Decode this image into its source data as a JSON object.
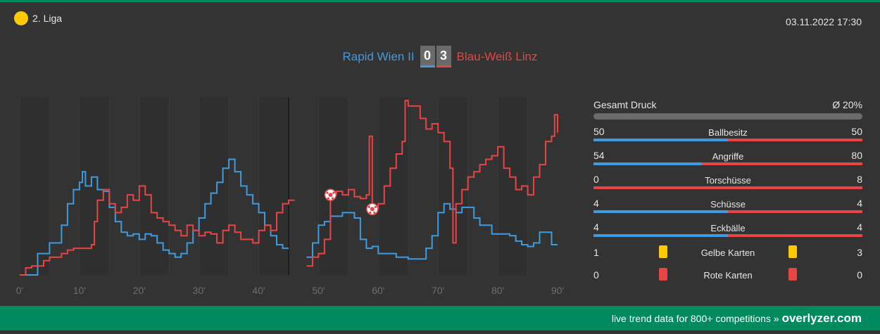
{
  "header": {
    "league": "2. Liga",
    "datetime": "03.11.2022 17:30"
  },
  "match": {
    "home_team": "Rapid Wien II",
    "away_team": "Blau-Weiß Linz",
    "home_score": "0",
    "away_score": "3"
  },
  "colors": {
    "home": "#3f9bdf",
    "away": "#e94444",
    "accent": "#008a5e",
    "yellow_card": "#ffc900",
    "red_card": "#e94444"
  },
  "stats": {
    "pressure_label": "Gesamt Druck",
    "pressure_value": "Ø 20%",
    "rows": [
      {
        "name": "Ballbesitz",
        "home": "50",
        "away": "50"
      },
      {
        "name": "Angriffe",
        "home": "54",
        "away": "80"
      },
      {
        "name": "Torschüsse",
        "home": "0",
        "away": "8"
      },
      {
        "name": "Schüsse",
        "home": "4",
        "away": "4"
      },
      {
        "name": "Eckbälle",
        "home": "4",
        "away": "4"
      }
    ],
    "cards": [
      {
        "name": "Gelbe Karten",
        "home": "1",
        "away": "3",
        "color": "#ffc900"
      },
      {
        "name": "Rote Karten",
        "home": "0",
        "away": "0",
        "color": "#e94444"
      }
    ]
  },
  "footer": {
    "text": "live trend data for 800+ competitions »",
    "brand": "overlyzer.com"
  },
  "chart_data": {
    "type": "line",
    "x_tick_labels": [
      "0'",
      "10'",
      "20'",
      "30'",
      "40'",
      "50'",
      "60'",
      "70'",
      "80'",
      "90'"
    ],
    "xlim": [
      0,
      90
    ],
    "ylim": [
      0,
      100
    ],
    "goal_icon": "soccer-ball-icon",
    "goals": [
      {
        "minute": 52,
        "value": 45
      },
      {
        "minute": 59,
        "value": 37
      }
    ],
    "series": [
      {
        "team": "home",
        "color": "#3f9bdf",
        "points": [
          [
            0,
            0
          ],
          [
            2,
            0
          ],
          [
            3,
            12
          ],
          [
            5,
            18
          ],
          [
            6,
            18
          ],
          [
            7,
            28
          ],
          [
            8,
            40
          ],
          [
            9,
            48
          ],
          [
            10,
            52
          ],
          [
            10.5,
            58
          ],
          [
            11,
            50
          ],
          [
            12,
            55
          ],
          [
            13,
            48
          ],
          [
            14,
            47
          ],
          [
            15,
            38
          ],
          [
            16,
            30
          ],
          [
            17,
            24
          ],
          [
            18,
            22
          ],
          [
            19,
            23
          ],
          [
            20,
            20
          ],
          [
            21,
            23
          ],
          [
            22,
            22
          ],
          [
            23,
            18
          ],
          [
            24,
            14
          ],
          [
            25,
            12
          ],
          [
            26,
            10
          ],
          [
            27,
            12
          ],
          [
            28,
            18
          ],
          [
            29,
            25
          ],
          [
            30,
            32
          ],
          [
            31,
            40
          ],
          [
            32,
            46
          ],
          [
            33,
            52
          ],
          [
            34,
            60
          ],
          [
            35,
            65
          ],
          [
            36,
            58
          ],
          [
            37,
            50
          ],
          [
            38,
            45
          ],
          [
            39,
            40
          ],
          [
            40,
            35
          ],
          [
            41,
            28
          ],
          [
            42,
            22
          ],
          [
            43,
            17
          ],
          [
            44,
            15
          ],
          [
            45,
            15
          ],
          [
            45.5,
            null
          ],
          [
            47,
            null
          ],
          [
            48,
            10
          ],
          [
            49,
            18
          ],
          [
            50,
            28
          ],
          [
            51,
            30
          ],
          [
            52,
            33
          ],
          [
            53,
            33
          ],
          [
            54,
            35
          ],
          [
            55,
            35
          ],
          [
            56,
            32
          ],
          [
            57,
            20
          ],
          [
            58,
            15
          ],
          [
            59,
            16
          ],
          [
            60,
            12
          ],
          [
            62,
            12
          ],
          [
            63,
            10
          ],
          [
            65,
            9
          ],
          [
            67,
            9
          ],
          [
            68,
            15
          ],
          [
            69,
            22
          ],
          [
            70,
            35
          ],
          [
            71,
            40
          ],
          [
            72,
            37
          ],
          [
            73,
            35
          ],
          [
            74,
            38
          ],
          [
            75,
            38
          ],
          [
            76,
            32
          ],
          [
            77,
            28
          ],
          [
            78,
            28
          ],
          [
            79,
            23
          ],
          [
            80,
            23
          ],
          [
            81,
            23
          ],
          [
            82,
            22
          ],
          [
            83,
            19
          ],
          [
            84,
            17
          ],
          [
            85,
            16
          ],
          [
            86,
            18
          ],
          [
            87,
            24
          ],
          [
            88,
            24
          ],
          [
            89,
            17
          ],
          [
            90,
            17
          ]
        ]
      },
      {
        "team": "away",
        "color": "#e94444",
        "points": [
          [
            0,
            0
          ],
          [
            1,
            4
          ],
          [
            2,
            5
          ],
          [
            3,
            5
          ],
          [
            4,
            8
          ],
          [
            5,
            10
          ],
          [
            6,
            10
          ],
          [
            7,
            12
          ],
          [
            8,
            14
          ],
          [
            9,
            15
          ],
          [
            10,
            15
          ],
          [
            11,
            15
          ],
          [
            12,
            17
          ],
          [
            12.5,
            30
          ],
          [
            13,
            42
          ],
          [
            14,
            48
          ],
          [
            15,
            40
          ],
          [
            16,
            35
          ],
          [
            17,
            38
          ],
          [
            18,
            45
          ],
          [
            19,
            42
          ],
          [
            20,
            50
          ],
          [
            21,
            45
          ],
          [
            22,
            35
          ],
          [
            23,
            32
          ],
          [
            24,
            30
          ],
          [
            25,
            28
          ],
          [
            26,
            25
          ],
          [
            27,
            22
          ],
          [
            28,
            28
          ],
          [
            29,
            25
          ],
          [
            30,
            22
          ],
          [
            31,
            24
          ],
          [
            32,
            23
          ],
          [
            33,
            18
          ],
          [
            34,
            25
          ],
          [
            35,
            28
          ],
          [
            36,
            24
          ],
          [
            37,
            20
          ],
          [
            38,
            20
          ],
          [
            39,
            18
          ],
          [
            40,
            25
          ],
          [
            41,
            28
          ],
          [
            42,
            25
          ],
          [
            43,
            35
          ],
          [
            44,
            40
          ],
          [
            45,
            42
          ],
          [
            46,
            42
          ],
          [
            46.5,
            null
          ],
          [
            47,
            null
          ],
          [
            48,
            5
          ],
          [
            49,
            10
          ],
          [
            50,
            12
          ],
          [
            51,
            20
          ],
          [
            52,
            45
          ],
          [
            53,
            47
          ],
          [
            54,
            45
          ],
          [
            55,
            48
          ],
          [
            56,
            44
          ],
          [
            57,
            43
          ],
          [
            58,
            45
          ],
          [
            58.5,
            78
          ],
          [
            59,
            37
          ],
          [
            60,
            40
          ],
          [
            61,
            50
          ],
          [
            62,
            60
          ],
          [
            63,
            68
          ],
          [
            64,
            75
          ],
          [
            64.5,
            98
          ],
          [
            65,
            95
          ],
          [
            66,
            95
          ],
          [
            67,
            88
          ],
          [
            68,
            82
          ],
          [
            69,
            85
          ],
          [
            70,
            80
          ],
          [
            71,
            75
          ],
          [
            72,
            60
          ],
          [
            72.5,
            18
          ],
          [
            73,
            40
          ],
          [
            74,
            48
          ],
          [
            75,
            55
          ],
          [
            76,
            58
          ],
          [
            77,
            62
          ],
          [
            78,
            65
          ],
          [
            79,
            67
          ],
          [
            80,
            72
          ],
          [
            81,
            60
          ],
          [
            82,
            55
          ],
          [
            83,
            48
          ],
          [
            84,
            50
          ],
          [
            85,
            45
          ],
          [
            86,
            55
          ],
          [
            87,
            62
          ],
          [
            88,
            75
          ],
          [
            89,
            78
          ],
          [
            89.5,
            90
          ],
          [
            90,
            80
          ]
        ]
      }
    ]
  }
}
